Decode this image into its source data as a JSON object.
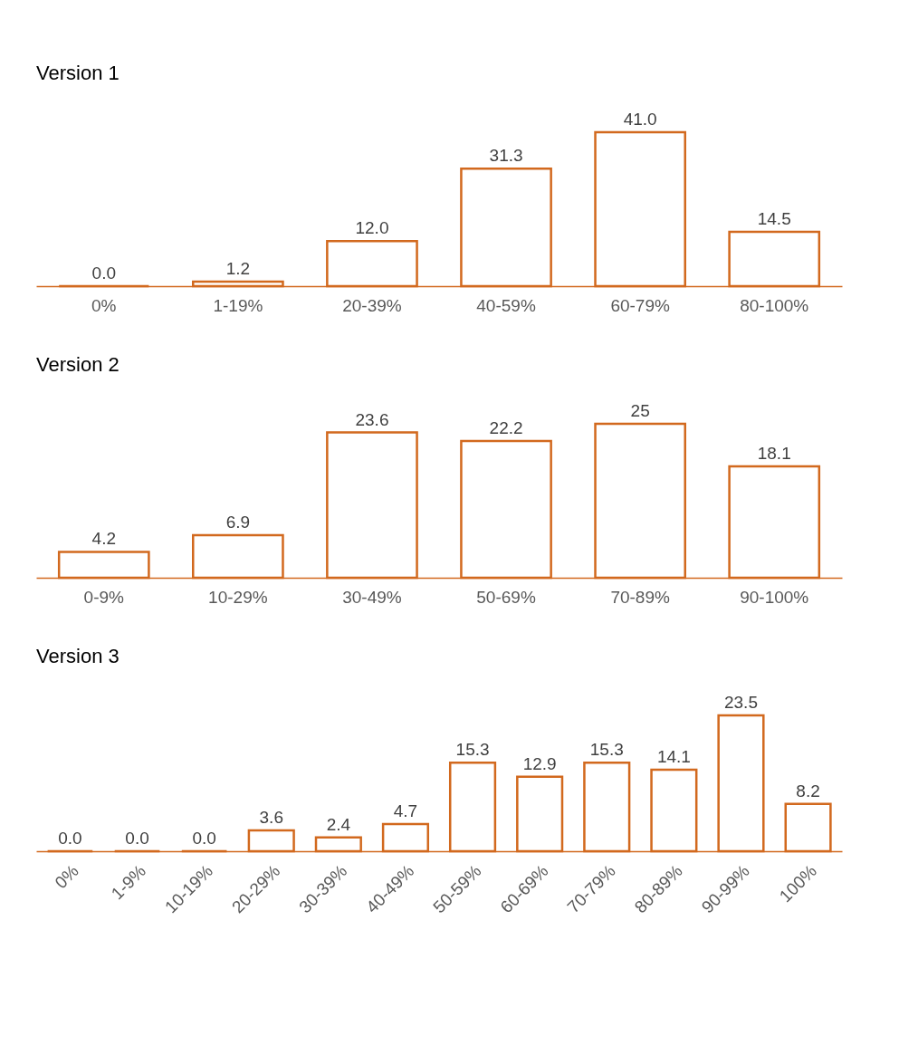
{
  "chart_data": [
    {
      "type": "bar",
      "title": "Version 1",
      "categories": [
        "0%",
        "1-19%",
        "20-39%",
        "40-59%",
        "60-79%",
        "80-100%"
      ],
      "series": [
        {
          "color": "#d2691e",
          "values": [
            0.0,
            1.2,
            12.0,
            31.3,
            41.0,
            14.5
          ],
          "value_labels": [
            "0.0",
            "1.2",
            "12.0",
            "31.3",
            "41.0",
            "14.5"
          ]
        }
      ]
    },
    {
      "type": "bar",
      "title": "Version 2",
      "categories": [
        "0-9%",
        "10-29%",
        "30-49%",
        "50-69%",
        "70-89%",
        "90-100%"
      ],
      "series": [
        {
          "color": "#d2691e",
          "values": [
            4.2,
            6.9,
            23.6,
            22.2,
            25,
            18.1
          ],
          "value_labels": [
            "4.2",
            "6.9",
            "23.6",
            "22.2",
            "25",
            "18.1"
          ]
        }
      ]
    },
    {
      "type": "bar",
      "title": "Version 3",
      "categories": [
        "0%",
        "1-9%",
        "10-19%",
        "20-29%",
        "30-39%",
        "40-49%",
        "50-59%",
        "60-69%",
        "70-79%",
        "80-89%",
        "90-99%",
        "100%"
      ],
      "series": [
        {
          "color": "#d2691e",
          "values": [
            0.0,
            0.0,
            0.0,
            3.6,
            2.4,
            4.7,
            15.3,
            12.9,
            15.3,
            14.1,
            23.5,
            8.2
          ],
          "value_labels": [
            "0.0",
            "0.0",
            "0.0",
            "3.6",
            "2.4",
            "4.7",
            "15.3",
            "12.9",
            "15.3",
            "14.1",
            "23.5",
            "8.2"
          ]
        }
      ]
    }
  ]
}
